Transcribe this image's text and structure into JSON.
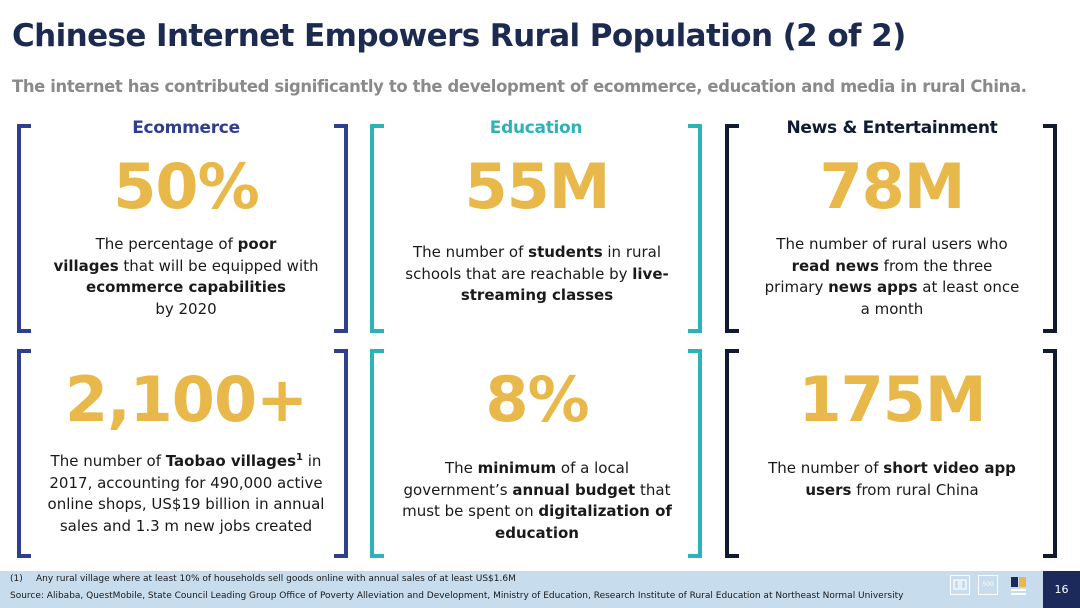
{
  "title": "Chinese Internet Empowers Rural Population (2 of 2)",
  "subtitle": "The internet has contributed significantly to the development of ecommerce, education and media in rural China.",
  "colors": {
    "title": "#1b2a4e",
    "stat": "#e8b94a",
    "ecommerce": "#2e3f8f",
    "education": "#2bb3b8",
    "news": "#111a33",
    "footer_bg": "#c7dcec",
    "page_box": "#1b2a5a"
  },
  "columns": [
    {
      "header": "Ecommerce",
      "cells": [
        {
          "stat": "50%",
          "parts": [
            "The percentage of ",
            "poor",
            " villages",
            " that will be equipped with ",
            "ecommerce capabilities",
            " by 2020"
          ]
        },
        {
          "stat": "2,100+",
          "parts": [
            "The number of ",
            "Taobao villages",
            "1",
            " in 2017, accounting for 490,000 active online shops, US$19 billion in annual sales and 1.3 m new jobs created"
          ]
        }
      ]
    },
    {
      "header": "Education",
      "cells": [
        {
          "stat": "55M",
          "parts": [
            "The number of ",
            "students",
            " in rural schools that are reachable by ",
            "live-streaming classes"
          ]
        },
        {
          "stat": "8%",
          "parts": [
            "The ",
            "minimum",
            " of a local government’s ",
            "annual budget",
            " that must be spent on ",
            "digitalization of education"
          ]
        }
      ]
    },
    {
      "header": "News & Entertainment",
      "cells": [
        {
          "stat": "78M",
          "parts": [
            "The number of rural users who ",
            "read news",
            " from the three primary ",
            "news apps",
            " at least once a month"
          ]
        },
        {
          "stat": "175M",
          "parts": [
            "The number of ",
            "short video app users",
            " from rural China"
          ]
        }
      ]
    }
  ],
  "footer": {
    "footnote_num": "(1)",
    "footnote_text": "Any rural village where at least 10% of households sell goods online with annual sales of at least US$1.6M",
    "source": "Source: Alibaba, QuestMobile, State Council Leading Group Office of Poverty Alleviation and Development, Ministry of Education, Research Institute of Rural Education at Northeast Normal University",
    "page_number": "16",
    "logo_icons": [
      "book-icon",
      "500-logo-icon",
      "china-logo-icon"
    ],
    "logo_500_text": "500"
  }
}
